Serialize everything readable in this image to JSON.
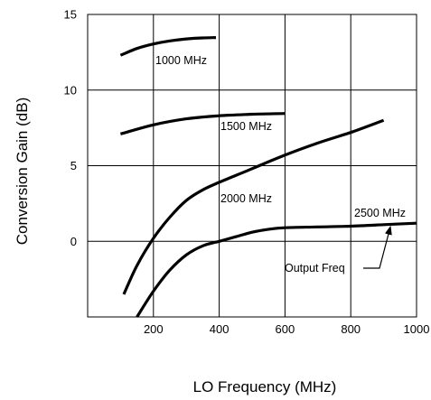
{
  "chart_data": {
    "type": "line",
    "title": "",
    "xlabel": "LO Frequency (MHz)",
    "ylabel": "Conversion Gain (dB)",
    "xlim": [
      0,
      1000
    ],
    "ylim": [
      -5,
      15
    ],
    "x_ticks": [
      200,
      400,
      600,
      800,
      1000
    ],
    "y_ticks": [
      0,
      5,
      10,
      15
    ],
    "grid": true,
    "colors": {
      "line": "#000000",
      "grid": "#000000",
      "background": "#ffffff"
    },
    "series": [
      {
        "name": "1000 MHz",
        "x": [
          100,
          150,
          200,
          250,
          300,
          350,
          390
        ],
        "y": [
          12.3,
          12.75,
          13.05,
          13.25,
          13.38,
          13.45,
          13.47
        ]
      },
      {
        "name": "1500 MHz",
        "x": [
          100,
          200,
          300,
          400,
          500,
          600
        ],
        "y": [
          7.1,
          7.7,
          8.1,
          8.3,
          8.4,
          8.45
        ]
      },
      {
        "name": "2000 MHz",
        "x": [
          110,
          150,
          200,
          250,
          300,
          350,
          400,
          500,
          600,
          700,
          800,
          900
        ],
        "y": [
          -3.5,
          -1.6,
          0.2,
          1.6,
          2.7,
          3.4,
          3.9,
          4.8,
          5.7,
          6.5,
          7.2,
          8.0
        ]
      },
      {
        "name": "2500 MHz",
        "x": [
          150,
          200,
          250,
          300,
          350,
          400,
          450,
          500,
          550,
          600,
          700,
          800,
          900,
          1000
        ],
        "y": [
          -5.0,
          -3.3,
          -1.9,
          -0.9,
          -0.3,
          0.0,
          0.3,
          0.6,
          0.8,
          0.9,
          0.95,
          1.0,
          1.1,
          1.2
        ]
      }
    ],
    "annotations": [
      {
        "text": "Output Freq",
        "points_to": {
          "x": 920,
          "y": 1.1
        }
      }
    ]
  }
}
